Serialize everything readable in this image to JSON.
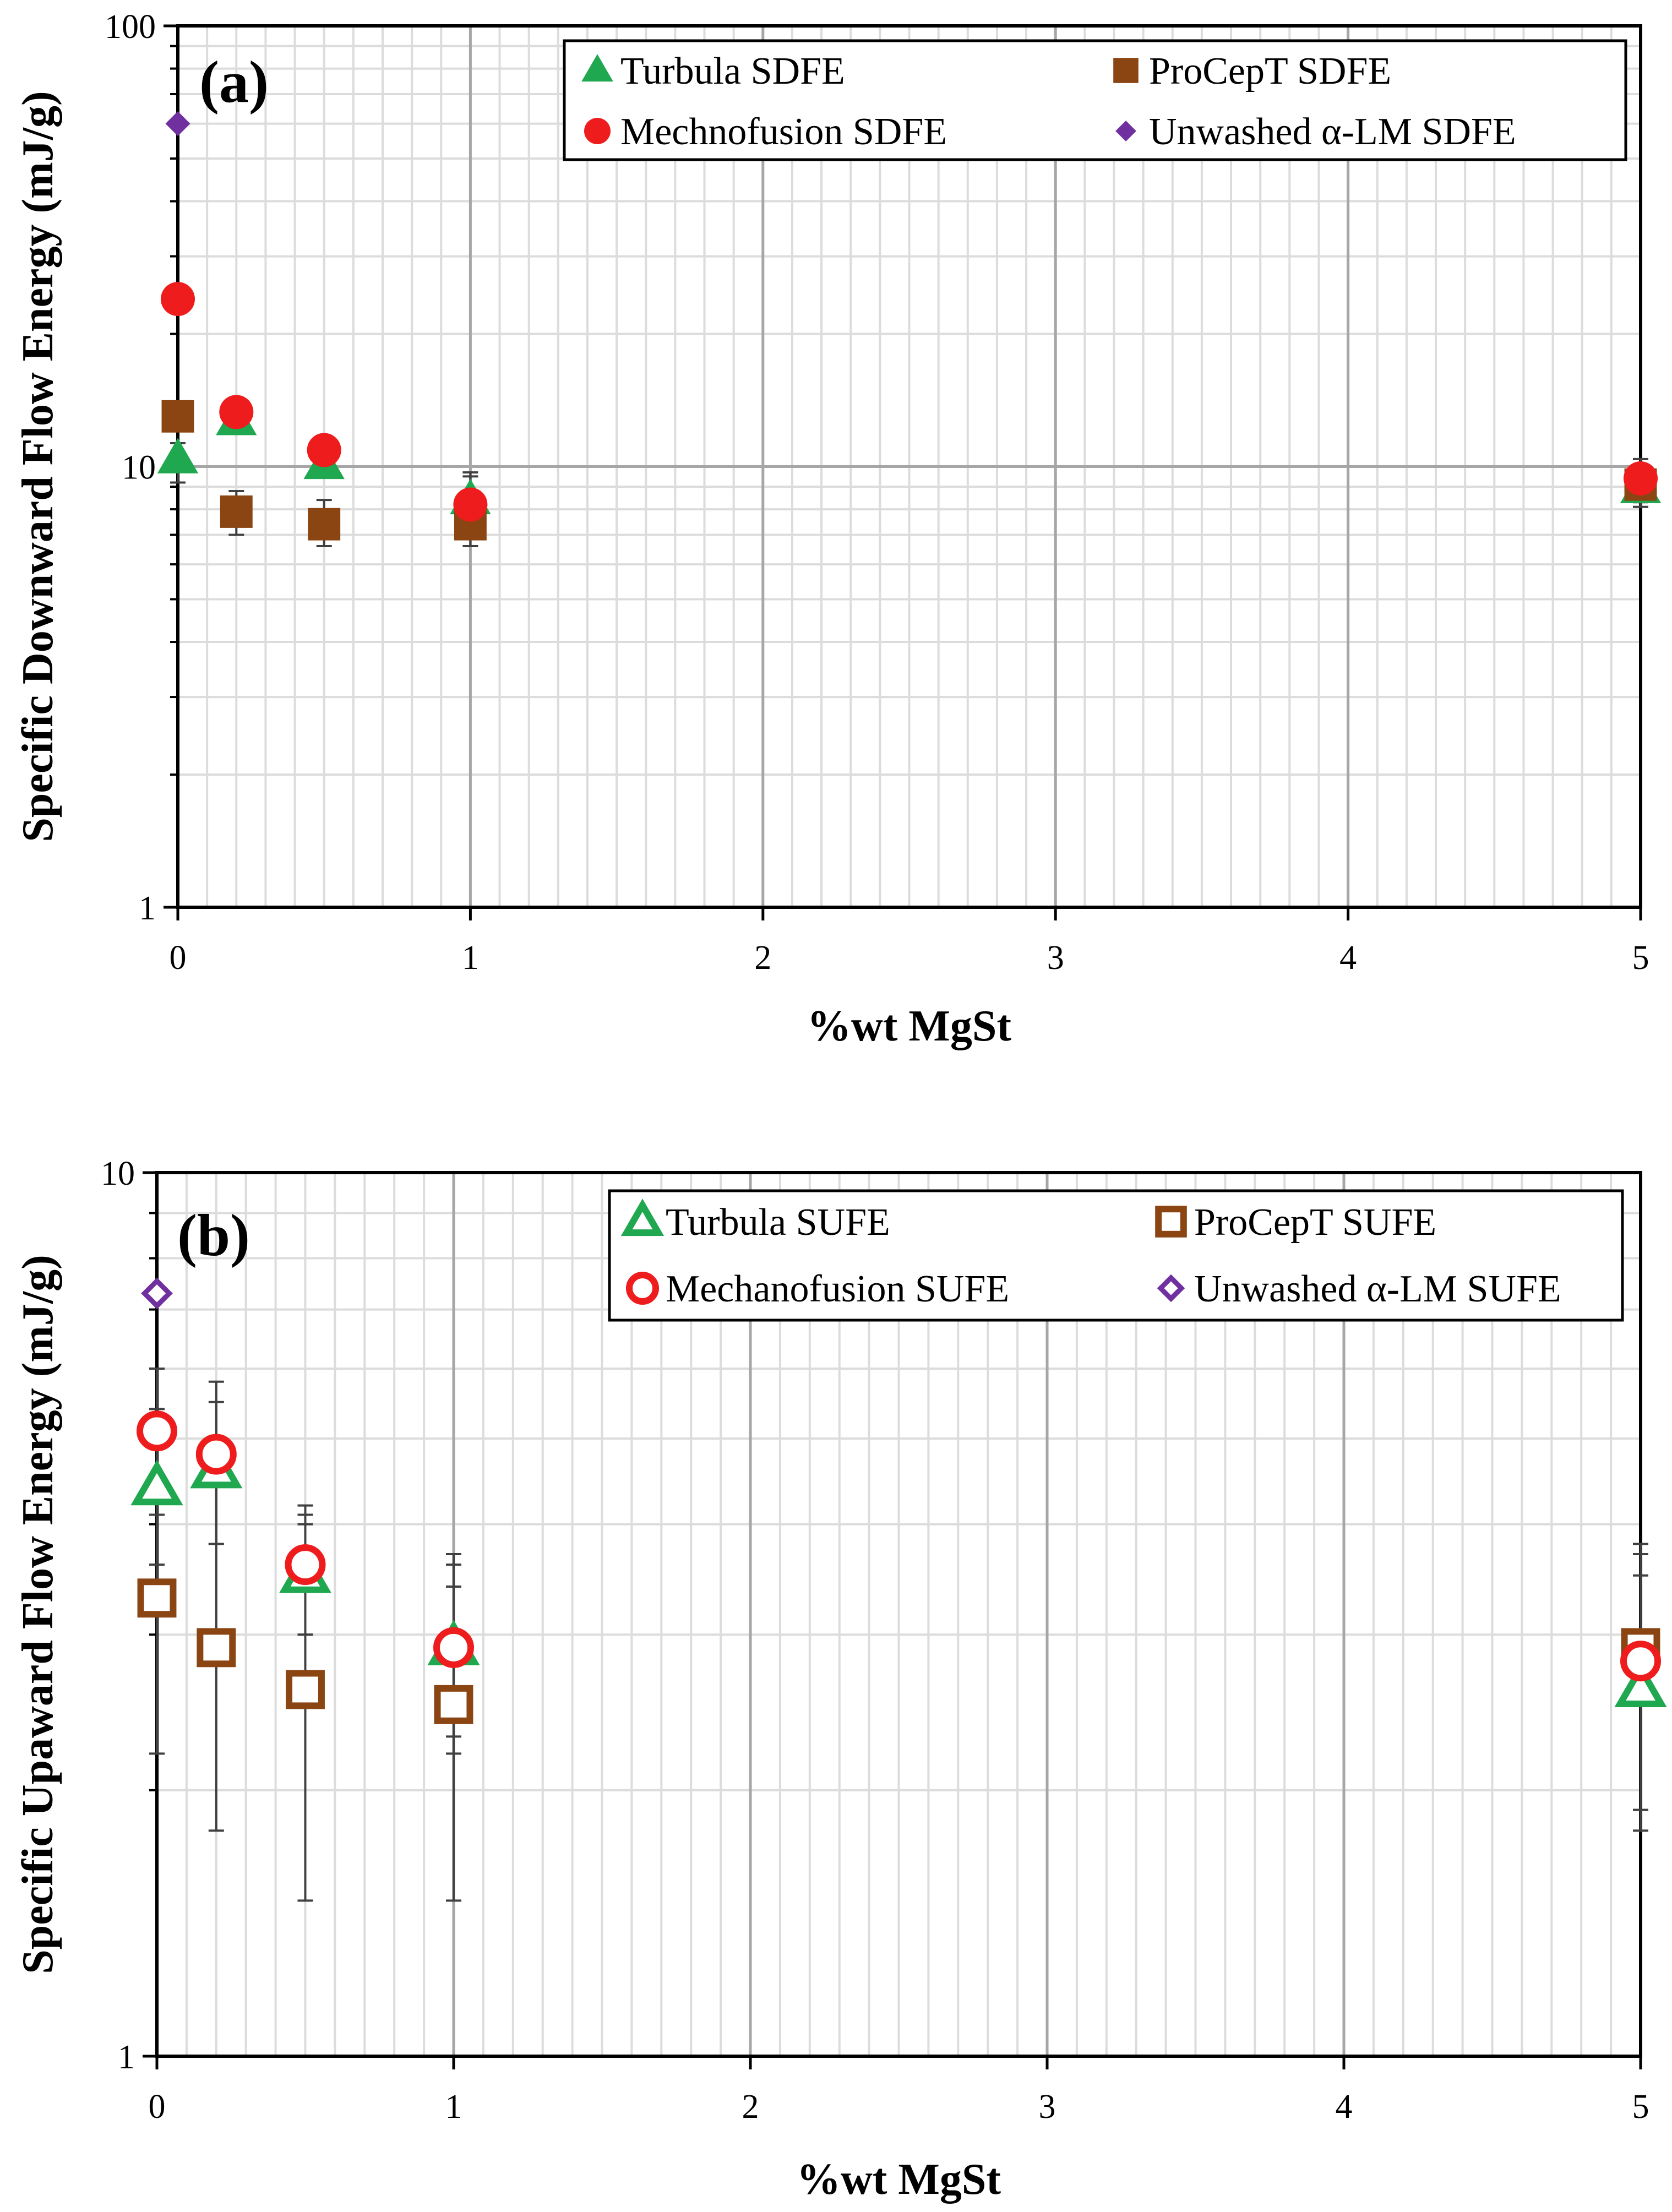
{
  "chart_data": [
    {
      "type": "scatter",
      "panel_label": "(a)",
      "xlabel": "%wt MgSt",
      "ylabel": "Specific Downward Flow Energy (mJ/g)",
      "xlim": [
        0,
        5
      ],
      "ylim": [
        1,
        100
      ],
      "y_scale": "log",
      "x_ticks": [
        0,
        1,
        2,
        3,
        4,
        5
      ],
      "y_ticks": [
        1,
        10,
        100
      ],
      "grid": true,
      "legend_position": "top-right",
      "series": [
        {
          "name": "Turbula SDFE",
          "marker": "triangle",
          "filled": true,
          "color": "#1fa84f",
          "x": [
            0,
            0.2,
            0.5,
            1,
            5
          ],
          "y": [
            10.4,
            12.7,
            10.1,
            8.4,
            8.9
          ],
          "err_low": [
            9.2,
            12.2,
            9.5,
            7.5,
            8.1
          ],
          "err_high": [
            11.3,
            13.4,
            11.5,
            9.5,
            9.7
          ]
        },
        {
          "name": "ProCepT SDFE",
          "marker": "square",
          "filled": true,
          "color": "#8b4513",
          "x": [
            0,
            0.2,
            0.5,
            1,
            5
          ],
          "y": [
            13.0,
            7.9,
            7.4,
            7.4,
            9.1
          ],
          "err_low": [
            12.3,
            7.0,
            6.6,
            6.6,
            8.3
          ],
          "err_high": [
            13.7,
            8.8,
            8.4,
            8.7,
            9.9
          ]
        },
        {
          "name": "Mechnofusion SDFE",
          "marker": "circle",
          "filled": true,
          "color": "#ee1c1c",
          "x": [
            0,
            0.2,
            0.5,
            1,
            5
          ],
          "y": [
            24.0,
            13.3,
            10.9,
            8.2,
            9.4
          ],
          "err_low": [
            23.2,
            12.8,
            10.3,
            7.9,
            9.0
          ],
          "err_high": [
            24.8,
            13.8,
            11.7,
            9.7,
            10.4
          ]
        },
        {
          "name": "Unwashed α-LM SDFE",
          "marker": "diamond",
          "filled": true,
          "color": "#7030a0",
          "x": [
            0
          ],
          "y": [
            60.0
          ],
          "err_low": [
            60.0
          ],
          "err_high": [
            60.0
          ]
        }
      ]
    },
    {
      "type": "scatter",
      "panel_label": "(b)",
      "xlabel": "%wt MgSt",
      "ylabel": "Specific Upaward Flow Energy (mJ/g)",
      "xlim": [
        0,
        5
      ],
      "ylim": [
        1,
        10
      ],
      "y_scale": "log",
      "x_ticks": [
        0,
        1,
        2,
        3,
        4,
        5
      ],
      "y_ticks": [
        1,
        10
      ],
      "grid": true,
      "legend_position": "top-right",
      "series": [
        {
          "name": "Turbula SUFE",
          "marker": "triangle",
          "filled": false,
          "color": "#1fa84f",
          "x": [
            0,
            0.2,
            0.5,
            1,
            5
          ],
          "y": [
            4.4,
            4.6,
            3.5,
            2.9,
            2.6
          ],
          "err_low": [
            3.6,
            3.8,
            3.0,
            2.2,
            1.8
          ],
          "err_high": [
            5.4,
            5.5,
            4.0,
            3.6,
            3.5
          ]
        },
        {
          "name": "ProCepT SUFE",
          "marker": "square",
          "filled": false,
          "color": "#8b4513",
          "x": [
            0,
            0.2,
            0.5,
            1,
            5
          ],
          "y": [
            3.3,
            2.9,
            2.6,
            2.5,
            2.9
          ],
          "err_low": [
            2.2,
            1.8,
            1.5,
            1.5,
            1.9
          ],
          "err_high": [
            4.4,
            4.6,
            4.1,
            3.4,
            3.7
          ]
        },
        {
          "name": "Mechanofusion SUFE",
          "marker": "circle",
          "filled": false,
          "color": "#ee1c1c",
          "x": [
            0,
            0.2,
            0.5,
            1,
            5
          ],
          "y": [
            5.1,
            4.8,
            3.6,
            2.9,
            2.8
          ],
          "err_low": [
            4.1,
            3.8,
            3.0,
            2.3,
            1.9
          ],
          "err_high": [
            6.0,
            5.8,
            4.2,
            3.7,
            3.8
          ]
        },
        {
          "name": "Unwashed α-LM SUFE",
          "marker": "diamond",
          "filled": false,
          "color": "#7030a0",
          "x": [
            0
          ],
          "y": [
            7.3
          ],
          "err_low": [
            7.3
          ],
          "err_high": [
            7.3
          ]
        }
      ]
    }
  ]
}
